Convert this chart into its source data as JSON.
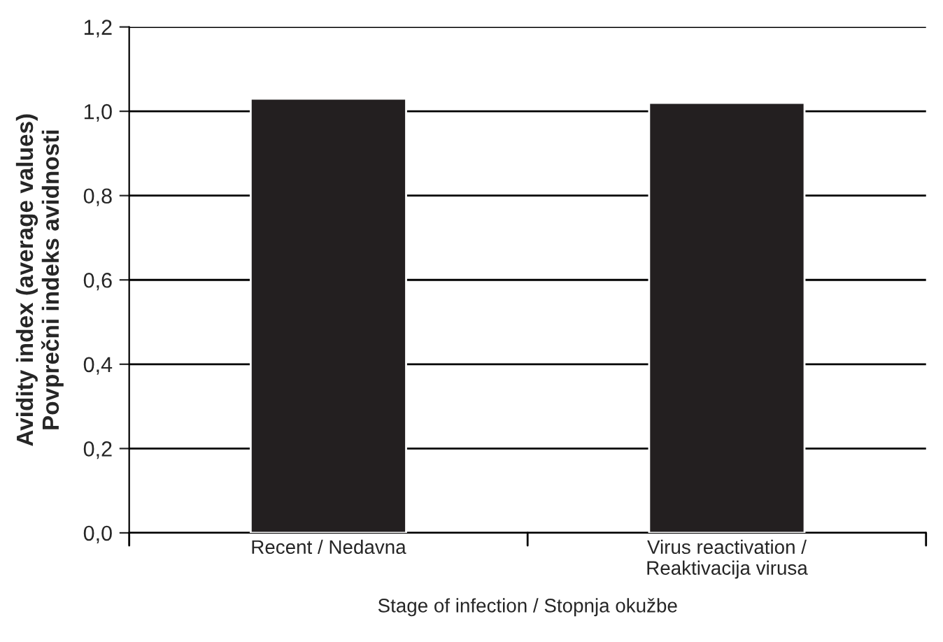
{
  "chart_data": {
    "type": "bar",
    "categories": [
      "Recent / Nedavna",
      "Virus reactivation /\nReaktivacija virusa"
    ],
    "values": [
      1.03,
      1.02
    ],
    "color": "#231f20",
    "xlabel": "Stage of infection / Stopnja okužbe",
    "ylabel": "Avidity index (average values)\nPovprečni indeks avidnosti",
    "ylim": [
      0,
      1.2
    ],
    "yticks": [
      {
        "value": 0,
        "label": "0,0"
      },
      {
        "value": 0.2,
        "label": "0,2"
      },
      {
        "value": 0.4,
        "label": "0,4"
      },
      {
        "value": 0.6,
        "label": "0,6"
      },
      {
        "value": 0.8,
        "label": "0,8"
      },
      {
        "value": 1.0,
        "label": "1,0"
      },
      {
        "value": 1.2,
        "label": "1,2"
      }
    ],
    "grid": "y"
  }
}
